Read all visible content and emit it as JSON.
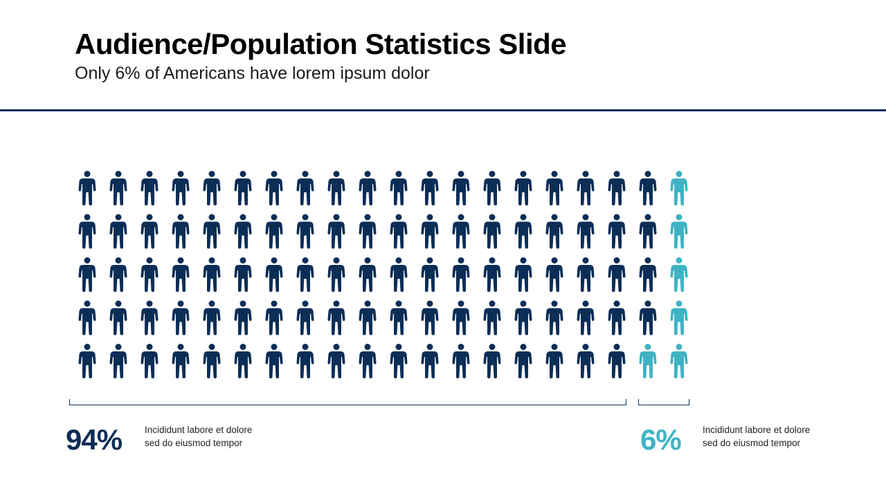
{
  "slide": {
    "title": "Audience/Population Statistics Slide",
    "subtitle": "Only 6% of Americans have lorem ipsum dolor"
  },
  "colors": {
    "primary": "#0b2e57",
    "accent": "#3fb3c4",
    "rule": "#0b2e57"
  },
  "chart_data": {
    "type": "pictogram",
    "icon": "person-icon",
    "total": 100,
    "rows": 5,
    "columns": 20,
    "fill_order": "right-column-bottom-up",
    "series": [
      {
        "name": "majority",
        "value": 94,
        "color": "#0b2e57"
      },
      {
        "name": "minority",
        "value": 6,
        "color": "#3fb3c4"
      }
    ]
  },
  "stats": [
    {
      "value": "94%",
      "description_line1": "Incididunt labore et dolore",
      "description_line2": "sed do eiusmod tempor"
    },
    {
      "value": "6%",
      "description_line1": "Incididunt labore et dolore",
      "description_line2": "sed do eiusmod tempor"
    }
  ]
}
